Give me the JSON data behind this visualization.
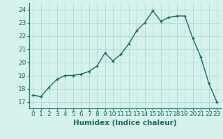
{
  "x": [
    0,
    1,
    2,
    3,
    4,
    5,
    6,
    7,
    8,
    9,
    10,
    11,
    12,
    13,
    14,
    15,
    16,
    17,
    18,
    19,
    20,
    21,
    22,
    23
  ],
  "y": [
    17.5,
    17.4,
    18.1,
    18.7,
    19.0,
    19.0,
    19.1,
    19.3,
    19.7,
    20.7,
    20.1,
    20.6,
    21.4,
    22.4,
    23.0,
    23.9,
    23.1,
    23.4,
    23.5,
    23.5,
    21.8,
    20.4,
    18.4,
    17.0
  ],
  "line_color": "#1a6b5a",
  "marker": "+",
  "marker_size": 3.5,
  "marker_linewidth": 1.0,
  "xlabel": "Humidex (Indice chaleur)",
  "xlim": [
    -0.5,
    23.5
  ],
  "ylim": [
    16.5,
    24.5
  ],
  "yticks": [
    17,
    18,
    19,
    20,
    21,
    22,
    23,
    24
  ],
  "xticks": [
    0,
    1,
    2,
    3,
    4,
    5,
    6,
    7,
    8,
    9,
    10,
    11,
    12,
    13,
    14,
    15,
    16,
    17,
    18,
    19,
    20,
    21,
    22,
    23
  ],
  "bg_color": "#d6f0ee",
  "grid_color": "#b0d8d4",
  "tick_label_fontsize": 6.5,
  "xlabel_fontsize": 7.5,
  "line_width": 1.0
}
